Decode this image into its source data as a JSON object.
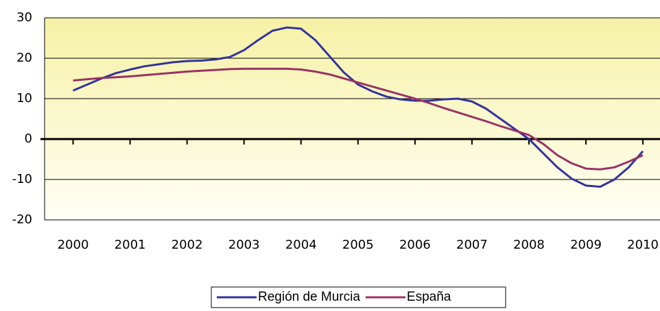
{
  "chart_data": {
    "type": "line",
    "x": [
      2000,
      2000.25,
      2000.5,
      2000.75,
      2001,
      2001.25,
      2001.5,
      2001.75,
      2002,
      2002.25,
      2002.5,
      2002.75,
      2003,
      2003.25,
      2003.5,
      2003.75,
      2004,
      2004.25,
      2004.5,
      2004.75,
      2005,
      2005.25,
      2005.5,
      2005.75,
      2006,
      2006.25,
      2006.5,
      2006.75,
      2007,
      2007.25,
      2007.5,
      2007.75,
      2008,
      2008.25,
      2008.5,
      2008.75,
      2009,
      2009.25,
      2009.5,
      2009.75,
      2010
    ],
    "series": [
      {
        "name": "Región de Murcia",
        "color": "#333399",
        "values": [
          12,
          13.5,
          15,
          16.3,
          17.2,
          18,
          18.5,
          19,
          19.3,
          19.4,
          19.7,
          20.3,
          22,
          24.5,
          26.8,
          27.6,
          27.3,
          24.5,
          20.5,
          16.5,
          13.5,
          11.8,
          10.5,
          9.8,
          9.5,
          9.5,
          9.8,
          10,
          9.3,
          7.5,
          5,
          2.5,
          0,
          -3.5,
          -7,
          -9.8,
          -11.5,
          -11.8,
          -10,
          -7,
          -3
        ]
      },
      {
        "name": "España",
        "color": "#993366",
        "values": [
          14.5,
          14.8,
          15.1,
          15.3,
          15.5,
          15.8,
          16.1,
          16.4,
          16.7,
          16.9,
          17.1,
          17.3,
          17.4,
          17.4,
          17.4,
          17.4,
          17.2,
          16.7,
          16,
          15,
          14,
          13,
          12,
          11,
          10,
          8.9,
          7.7,
          6.6,
          5.5,
          4.4,
          3.2,
          2.1,
          1,
          -1.2,
          -4,
          -6,
          -7.3,
          -7.5,
          -7,
          -5.6,
          -4
        ]
      }
    ],
    "xlim": [
      1999.5,
      2010.3
    ],
    "xticks": [
      2000,
      2001,
      2002,
      2003,
      2004,
      2005,
      2006,
      2007,
      2008,
      2009,
      2010
    ],
    "ylim": [
      -20,
      30
    ],
    "yticks": [
      -20,
      -10,
      0,
      10,
      20,
      30
    ],
    "grid": true,
    "legend": "bottom"
  }
}
